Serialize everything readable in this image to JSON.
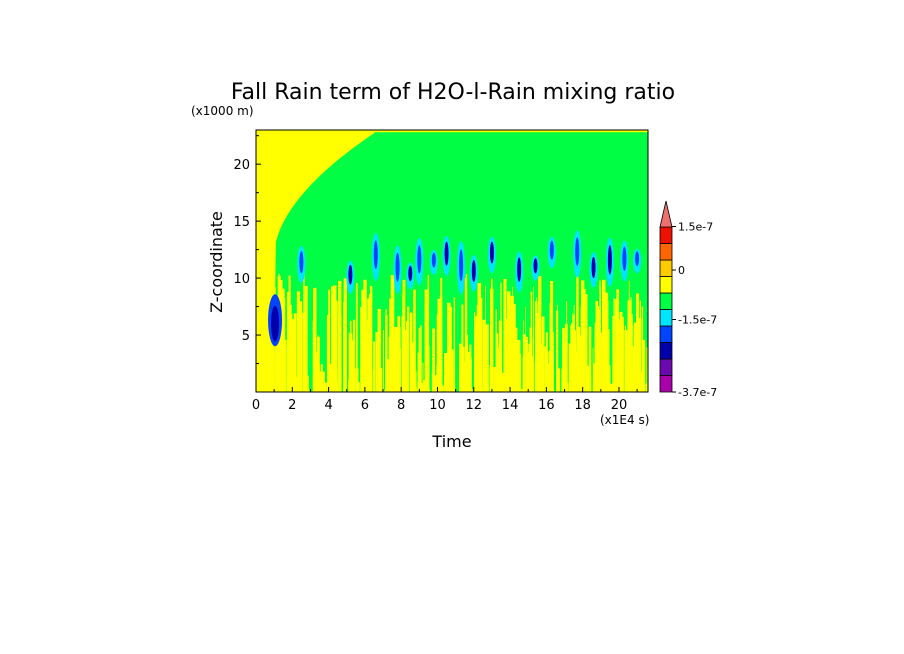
{
  "chart_data": {
    "type": "heatmap",
    "title": "Fall Rain term of H2O-l-Rain mixing ratio",
    "xlabel": "Time",
    "ylabel": "Z-coordinate",
    "x_unit": "(x1E4 s)",
    "y_unit": "(x1000 m)",
    "xlim": [
      0,
      21.6
    ],
    "ylim": [
      0,
      23
    ],
    "x_ticks": [
      0,
      2,
      4,
      6,
      8,
      10,
      12,
      14,
      16,
      18,
      20
    ],
    "y_ticks": [
      5,
      10,
      15,
      20
    ],
    "colorbar": {
      "colors": [
        "#aa00aa",
        "#6a0aae",
        "#0000aa",
        "#0044ff",
        "#00e5ff",
        "#00ff44",
        "#ffff00",
        "#ffcc00",
        "#ff6600",
        "#ee1100",
        "#f07070"
      ],
      "labels": [
        "1.5e-7",
        "0",
        "-1.5e-7",
        "-3.7e-7"
      ],
      "extend": "max"
    },
    "regions": [
      {
        "name": "background positive",
        "color": "#ffff00",
        "x_range": [
          0,
          21.6
        ],
        "z_range": [
          0,
          23
        ]
      },
      {
        "name": "main field near zero",
        "color": "#00ff44",
        "x_range": [
          1.0,
          21.6
        ],
        "z_range": [
          0,
          22.8
        ]
      },
      {
        "name": "low-level yellow streaks",
        "color": "#ffff00",
        "x_range": [
          1.0,
          21.6
        ],
        "z_range": [
          0,
          11
        ]
      },
      {
        "name": "early negative core",
        "color": "#0000aa",
        "x_range": [
          0.8,
          1.3
        ],
        "z_range": [
          4.5,
          8.5
        ]
      },
      {
        "name": "mid-level negative cells",
        "color": "#0044ff",
        "x_range": [
          2.5,
          21.0
        ],
        "z_range": [
          9,
          13.5
        ]
      }
    ]
  }
}
